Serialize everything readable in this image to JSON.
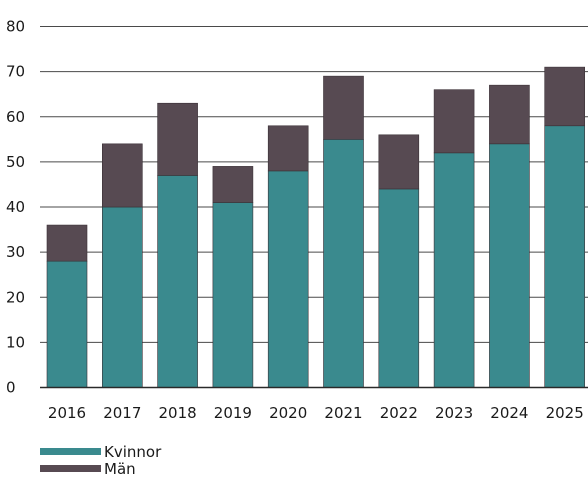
{
  "chart_data": {
    "type": "bar",
    "stacked": true,
    "categories": [
      "2016",
      "2017",
      "2018",
      "2019",
      "2020",
      "2021",
      "2022",
      "2023",
      "2024",
      "2025"
    ],
    "series": [
      {
        "name": "Kvinnor",
        "color": "#3a8a8e",
        "values": [
          28,
          40,
          47,
          41,
          48,
          55,
          44,
          52,
          54,
          58
        ]
      },
      {
        "name": "Män",
        "color": "#574a52",
        "values": [
          8,
          14,
          16,
          8,
          10,
          14,
          12,
          14,
          13,
          13
        ]
      }
    ],
    "y_ticks": [
      "0",
      "10",
      "20",
      "30",
      "40",
      "50",
      "60",
      "70",
      "80"
    ],
    "ylim": [
      0,
      80
    ],
    "grid": true,
    "legend_position": "bottom-left",
    "title": "",
    "xlabel": "",
    "ylabel": ""
  }
}
